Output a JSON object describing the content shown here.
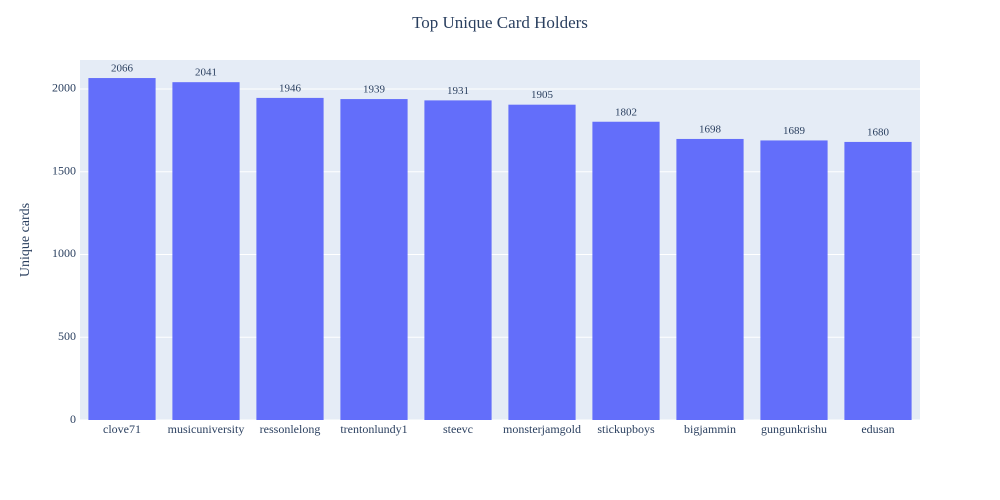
{
  "chart_data": {
    "type": "bar",
    "title": "Top Unique Card Holders",
    "y_label": "Unique cards",
    "categories": [
      "clove71",
      "musicuniversity",
      "ressonlelong",
      "trentonlundy1",
      "steevc",
      "monsterjamgold",
      "stickupboys",
      "bigjammin",
      "gungunkrishu",
      "edusan"
    ],
    "values": [
      2066,
      2041,
      1946,
      1939,
      1931,
      1905,
      1802,
      1698,
      1689,
      1680
    ],
    "color": "#636efa",
    "ylim": [
      0,
      2175
    ],
    "yticks": [
      0,
      500,
      1000,
      1500,
      2000
    ],
    "grid": true,
    "show_value_labels": true
  }
}
